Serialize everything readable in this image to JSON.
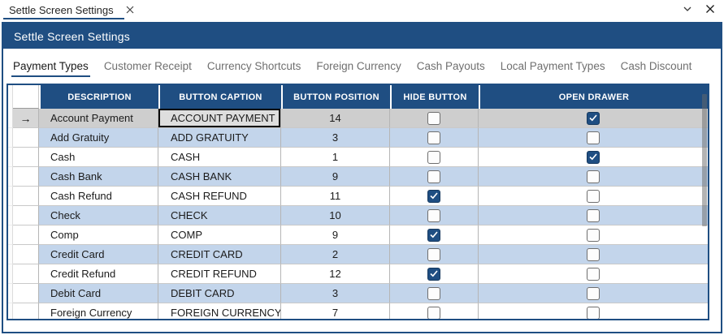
{
  "doc_tab": {
    "title": "Settle Screen Settings"
  },
  "titlebar": {
    "title": "Settle Screen Settings"
  },
  "tabs": [
    {
      "label": "Payment Types",
      "active": true
    },
    {
      "label": "Customer Receipt",
      "active": false
    },
    {
      "label": "Currency Shortcuts",
      "active": false
    },
    {
      "label": "Foreign Currency",
      "active": false
    },
    {
      "label": "Cash Payouts",
      "active": false
    },
    {
      "label": "Local Payment Types",
      "active": false
    },
    {
      "label": "Cash Discount",
      "active": false
    }
  ],
  "grid": {
    "columns": [
      "DESCRIPTION",
      "BUTTON CAPTION",
      "BUTTON POSITION",
      "HIDE BUTTON",
      "OPEN DRAWER"
    ],
    "current_row_indicator": "→",
    "rows": [
      {
        "description": "Account Payment",
        "button_caption": "ACCOUNT PAYMENT",
        "button_position": "14",
        "hide_button": false,
        "open_drawer": true,
        "selected": true,
        "current_cell": "button_caption"
      },
      {
        "description": "Add Gratuity",
        "button_caption": "ADD GRATUITY",
        "button_position": "3",
        "hide_button": false,
        "open_drawer": false
      },
      {
        "description": "Cash",
        "button_caption": "CASH",
        "button_position": "1",
        "hide_button": false,
        "open_drawer": true
      },
      {
        "description": "Cash Bank",
        "button_caption": "CASH BANK",
        "button_position": "9",
        "hide_button": false,
        "open_drawer": false
      },
      {
        "description": "Cash Refund",
        "button_caption": "CASH REFUND",
        "button_position": "11",
        "hide_button": true,
        "open_drawer": false
      },
      {
        "description": "Check",
        "button_caption": "CHECK",
        "button_position": "10",
        "hide_button": false,
        "open_drawer": false
      },
      {
        "description": "Comp",
        "button_caption": "COMP",
        "button_position": "9",
        "hide_button": true,
        "open_drawer": false
      },
      {
        "description": "Credit Card",
        "button_caption": "CREDIT CARD",
        "button_position": "2",
        "hide_button": false,
        "open_drawer": false
      },
      {
        "description": "Credit Refund",
        "button_caption": "CREDIT REFUND",
        "button_position": "12",
        "hide_button": true,
        "open_drawer": false
      },
      {
        "description": "Debit Card",
        "button_caption": "DEBIT CARD",
        "button_position": "3",
        "hide_button": false,
        "open_drawer": false
      },
      {
        "description": "Foreign Currency",
        "button_caption": "FOREIGN CURRENCY",
        "button_position": "7",
        "hide_button": false,
        "open_drawer": false
      }
    ]
  },
  "colors": {
    "accent_blue": "#1f4e82",
    "row_alt": "#c3d5eb",
    "row_selected": "#cecece"
  }
}
